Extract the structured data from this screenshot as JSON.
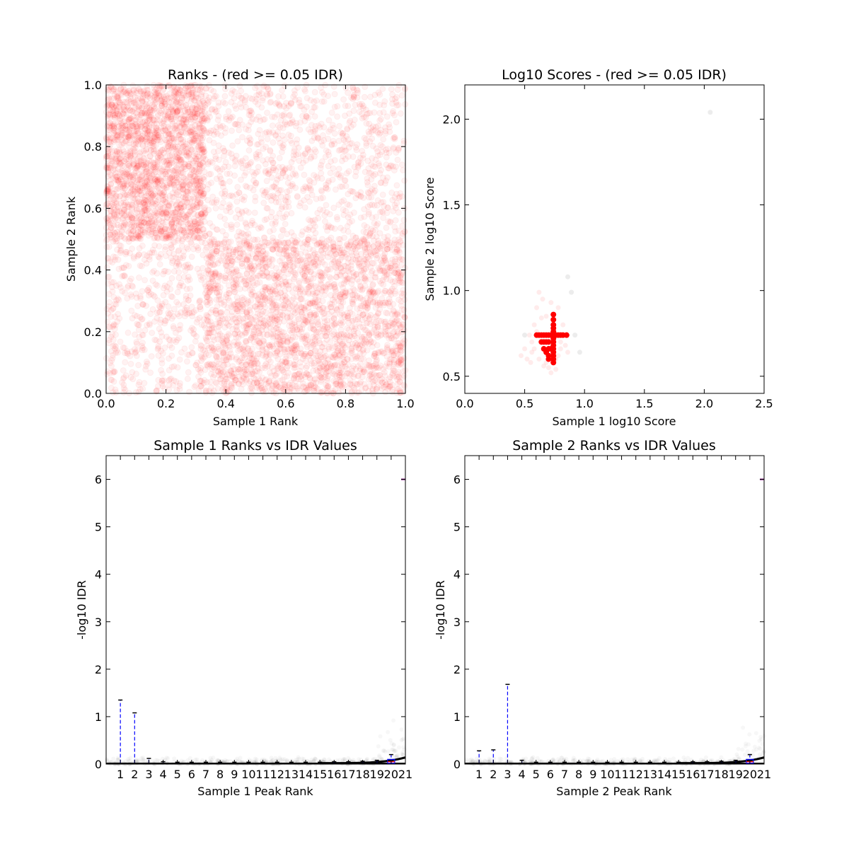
{
  "chart_data": [
    {
      "id": "ranks",
      "type": "scatter",
      "title": "Ranks - (red >= 0.05 IDR)",
      "xlabel": "Sample 1 Rank",
      "ylabel": "Sample 2 Rank",
      "xlim": [
        0.0,
        1.0
      ],
      "ylim": [
        0.0,
        1.0
      ],
      "xticks": [
        "0.0",
        "0.2",
        "0.4",
        "0.6",
        "0.8",
        "1.0"
      ],
      "yticks": [
        "0.0",
        "0.2",
        "0.4",
        "0.6",
        "0.8",
        "1.0"
      ],
      "point_color": "#ff0000",
      "point_alpha": 0.05,
      "point_count": 6000,
      "dense_regions": [
        {
          "x": [
            0.0,
            0.33
          ],
          "y": [
            0.5,
            1.0
          ]
        },
        {
          "x": [
            0.33,
            1.0
          ],
          "y": [
            0.0,
            0.5
          ]
        }
      ],
      "grid": false,
      "legend": "none"
    },
    {
      "id": "scores",
      "type": "scatter",
      "title": "Log10 Scores - (red >= 0.05 IDR)",
      "xlabel": "Sample 1 log10 Score",
      "ylabel": "Sample 2 log10 Score",
      "xlim": [
        0.0,
        2.5
      ],
      "ylim": [
        0.4,
        2.2
      ],
      "xticks": [
        "0.0",
        "0.5",
        "1.0",
        "1.5",
        "2.0",
        "2.5"
      ],
      "yticks": [
        "0.5",
        "1.0",
        "1.5",
        "2.0"
      ],
      "point_color": "#ff0000",
      "outlier_color": "#808080",
      "solid_points": [
        [
          0.6,
          0.74
        ],
        [
          0.62,
          0.74
        ],
        [
          0.64,
          0.74
        ],
        [
          0.66,
          0.74
        ],
        [
          0.68,
          0.74
        ],
        [
          0.7,
          0.74
        ],
        [
          0.72,
          0.74
        ],
        [
          0.74,
          0.74
        ],
        [
          0.76,
          0.74
        ],
        [
          0.78,
          0.74
        ],
        [
          0.8,
          0.74
        ],
        [
          0.82,
          0.74
        ],
        [
          0.85,
          0.74
        ],
        [
          0.74,
          0.58
        ],
        [
          0.74,
          0.6
        ],
        [
          0.74,
          0.62
        ],
        [
          0.74,
          0.64
        ],
        [
          0.74,
          0.66
        ],
        [
          0.74,
          0.68
        ],
        [
          0.74,
          0.7
        ],
        [
          0.74,
          0.72
        ],
        [
          0.74,
          0.76
        ],
        [
          0.74,
          0.78
        ],
        [
          0.74,
          0.8
        ],
        [
          0.74,
          0.83
        ],
        [
          0.74,
          0.86
        ],
        [
          0.64,
          0.7
        ],
        [
          0.66,
          0.7
        ],
        [
          0.68,
          0.7
        ],
        [
          0.7,
          0.7
        ],
        [
          0.7,
          0.66
        ],
        [
          0.7,
          0.62
        ],
        [
          0.68,
          0.64
        ],
        [
          0.66,
          0.66
        ],
        [
          0.7,
          0.6
        ],
        [
          0.72,
          0.66
        ]
      ],
      "faint_points": [
        [
          0.47,
          0.62
        ],
        [
          0.5,
          0.66
        ],
        [
          0.52,
          0.6
        ],
        [
          0.55,
          0.58
        ],
        [
          0.56,
          0.7
        ],
        [
          0.58,
          0.8
        ],
        [
          0.6,
          0.9
        ],
        [
          0.62,
          0.99
        ],
        [
          0.65,
          0.95
        ],
        [
          0.68,
          0.85
        ],
        [
          0.7,
          0.55
        ],
        [
          0.72,
          0.52
        ],
        [
          0.76,
          0.54
        ],
        [
          0.78,
          0.62
        ],
        [
          0.8,
          0.7
        ],
        [
          0.82,
          0.8
        ],
        [
          0.66,
          0.56
        ],
        [
          0.62,
          0.6
        ],
        [
          0.58,
          0.66
        ],
        [
          0.64,
          0.84
        ],
        [
          0.8,
          0.66
        ],
        [
          0.84,
          0.68
        ],
        [
          0.78,
          0.9
        ],
        [
          0.72,
          0.93
        ],
        [
          0.6,
          0.76
        ],
        [
          0.56,
          0.64
        ],
        [
          0.68,
          0.58
        ],
        [
          0.76,
          0.6
        ],
        [
          0.86,
          0.64
        ],
        [
          0.54,
          0.74
        ]
      ],
      "outlier_points": [
        [
          2.05,
          2.04
        ],
        [
          0.86,
          1.08
        ],
        [
          0.92,
          0.74
        ],
        [
          0.96,
          0.64
        ],
        [
          0.5,
          0.74
        ],
        [
          0.89,
          0.99
        ]
      ],
      "grid": false,
      "legend": "none"
    },
    {
      "id": "s1idr",
      "type": "box",
      "title": "Sample 1 Ranks vs IDR Values",
      "xlabel": "Sample 1 Peak Rank",
      "ylabel": "-log10 IDR",
      "xlim": [
        0,
        21
      ],
      "ylim": [
        0,
        6.5
      ],
      "xticks": [
        "1",
        "2",
        "3",
        "4",
        "5",
        "6",
        "7",
        "8",
        "9",
        "10",
        "11",
        "12",
        "13",
        "14",
        "15",
        "16",
        "17",
        "18",
        "19",
        "20",
        "21"
      ],
      "yticks": [
        "0",
        "1",
        "2",
        "3",
        "4",
        "5",
        "6"
      ],
      "whisker_tops": [
        1.35,
        1.08,
        0.12,
        0.05,
        0.04,
        0.04,
        0.04,
        0.04,
        0.04,
        0.04,
        0.04,
        0.04,
        0.04,
        0.04,
        0.04,
        0.05,
        0.05,
        0.06,
        0.08,
        0.2
      ],
      "box_top_last": 0.1,
      "outlier_marker_y": 6.0,
      "whisker_color": "#0000ff",
      "grid": false,
      "legend": "none"
    },
    {
      "id": "s2idr",
      "type": "box",
      "title": "Sample 2 Ranks vs IDR Values",
      "xlabel": "Sample 2 Peak Rank",
      "ylabel": "-log10 IDR",
      "xlim": [
        0,
        21
      ],
      "ylim": [
        0,
        6.5
      ],
      "xticks": [
        "1",
        "2",
        "3",
        "4",
        "5",
        "6",
        "7",
        "8",
        "9",
        "10",
        "11",
        "12",
        "13",
        "14",
        "15",
        "16",
        "17",
        "18",
        "19",
        "20",
        "21"
      ],
      "yticks": [
        "0",
        "1",
        "2",
        "3",
        "4",
        "5",
        "6"
      ],
      "whisker_tops": [
        0.28,
        0.3,
        1.68,
        0.08,
        0.04,
        0.04,
        0.04,
        0.04,
        0.04,
        0.04,
        0.04,
        0.04,
        0.04,
        0.04,
        0.04,
        0.05,
        0.05,
        0.06,
        0.08,
        0.2
      ],
      "box_top_last": 0.1,
      "outlier_marker_y": 6.0,
      "whisker_color": "#0000ff",
      "grid": false,
      "legend": "none"
    }
  ]
}
